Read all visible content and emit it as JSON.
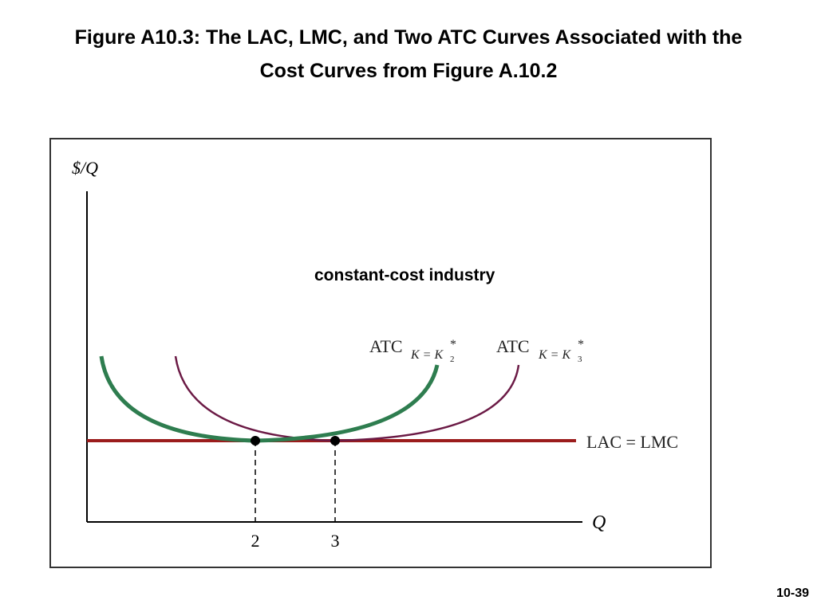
{
  "slide": {
    "title_line1": "Figure A10.3: The LAC, LMC, and Two ATC Curves Associated with the",
    "title_line2": "Cost Curves from Figure A.10.2",
    "page_number": "10-39"
  },
  "chart_data": {
    "type": "line",
    "ylabel": "$/Q",
    "xlabel": "Q",
    "annotation": "constant-cost industry",
    "x_ticks": [
      "2",
      "3"
    ],
    "series": [
      {
        "name": "ATC",
        "subscript": "K = K",
        "sub_index": "2",
        "star": "*",
        "color": "#2e7d4f",
        "min_at": "2"
      },
      {
        "name": "ATC",
        "subscript": "K = K",
        "sub_index": "3",
        "star": "*",
        "color": "#6b1a45",
        "min_at": "3"
      },
      {
        "name": "LAC = LMC",
        "color": "#9b1c1c",
        "shape": "horizontal"
      }
    ],
    "points": [
      {
        "x": "2",
        "on": "LAC = LMC"
      },
      {
        "x": "3",
        "on": "LAC = LMC"
      }
    ],
    "grid": false,
    "colors": {
      "frame": "#333333",
      "axes": "#000000",
      "dashed": "#000000"
    }
  }
}
